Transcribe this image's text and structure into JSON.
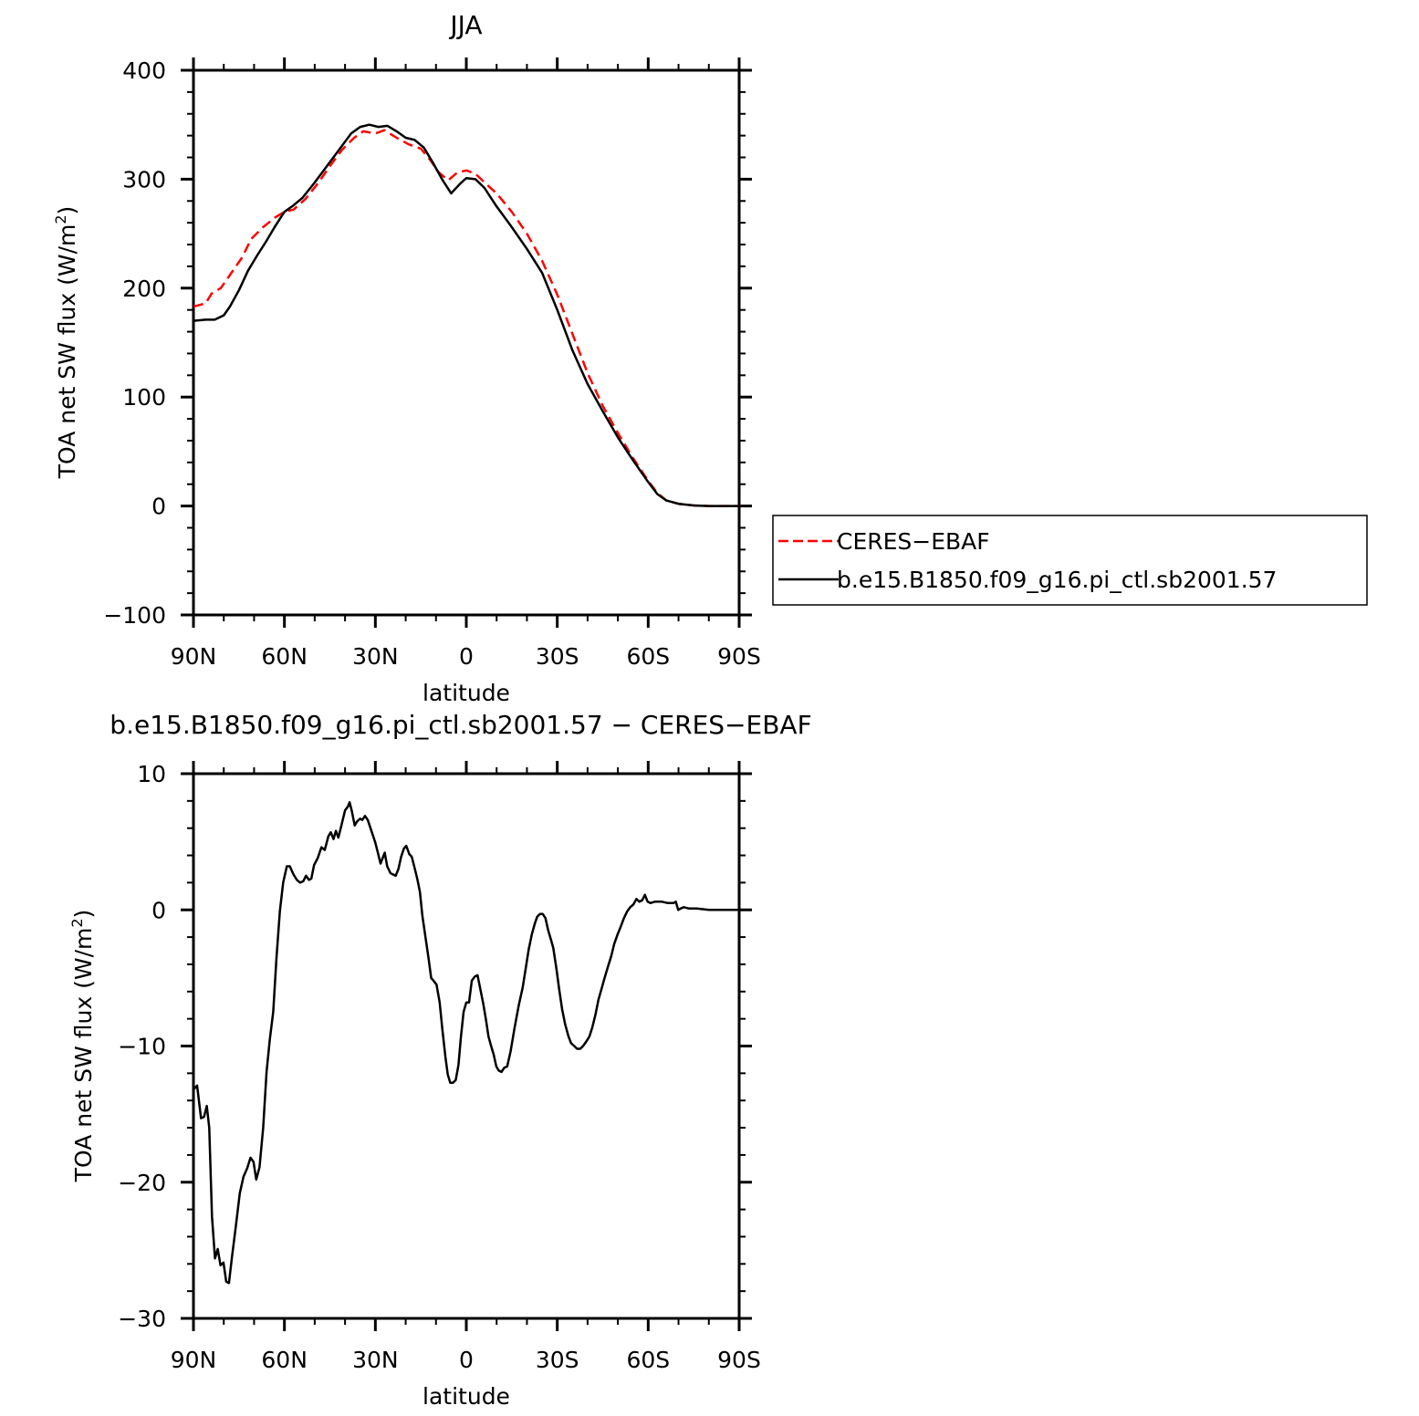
{
  "chart_data": [
    {
      "type": "line",
      "title": "JJA",
      "xlabel": "latitude",
      "ylabel": "TOA net SW flux (W/m²)",
      "ylabel_main": "TOA net SW flux (W/m",
      "ylabel_sup": "2",
      "ylabel_close": ")",
      "xlim": [
        90,
        -90
      ],
      "ylim": [
        -100,
        400
      ],
      "xticks": [
        90,
        60,
        30,
        0,
        -30,
        -60,
        -90
      ],
      "xtick_labels": [
        "90N",
        "60N",
        "30N",
        "0",
        "30S",
        "60S",
        "90S"
      ],
      "yticks": [
        -100,
        0,
        100,
        200,
        300,
        400
      ],
      "ytick_labels": [
        "−100",
        "0",
        "100",
        "200",
        "300",
        "400"
      ],
      "legend": {
        "position": "right"
      },
      "series": [
        {
          "name": "CERES−EBAF",
          "color": "#ff0000",
          "style": "dashed",
          "points": [
            [
              90,
              183
            ],
            [
              86,
              186
            ],
            [
              84,
              195
            ],
            [
              81,
              200
            ],
            [
              78,
              212
            ],
            [
              74,
              228
            ],
            [
              71,
              245
            ],
            [
              67,
              256
            ],
            [
              63,
              265
            ],
            [
              60,
              270
            ],
            [
              57,
              272
            ],
            [
              53,
              282
            ],
            [
              49,
              296
            ],
            [
              45,
              312
            ],
            [
              41,
              327
            ],
            [
              37,
              338
            ],
            [
              34,
              344
            ],
            [
              30,
              342
            ],
            [
              27,
              345
            ],
            [
              23,
              338
            ],
            [
              19,
              332
            ],
            [
              15,
              328
            ],
            [
              12,
              318
            ],
            [
              9,
              306
            ],
            [
              6,
              299
            ],
            [
              3,
              306
            ],
            [
              0,
              308
            ],
            [
              -3,
              305
            ],
            [
              -6,
              297
            ],
            [
              -10,
              287
            ],
            [
              -15,
              270
            ],
            [
              -20,
              250
            ],
            [
              -25,
              225
            ],
            [
              -30,
              194
            ],
            [
              -35,
              158
            ],
            [
              -40,
              122
            ],
            [
              -45,
              92
            ],
            [
              -50,
              67
            ],
            [
              -55,
              44
            ],
            [
              -60,
              23
            ],
            [
              -63,
              12
            ],
            [
              -66,
              5
            ],
            [
              -70,
              2
            ],
            [
              -75,
              0.5
            ],
            [
              -80,
              0
            ],
            [
              -90,
              0
            ]
          ]
        },
        {
          "name": "b.e15.B1850.f09_g16.pi_ctl.sb2001.57",
          "color": "#000000",
          "style": "solid",
          "points": [
            [
              90,
              170
            ],
            [
              86,
              171
            ],
            [
              83,
              171
            ],
            [
              80,
              175
            ],
            [
              78,
              183
            ],
            [
              75,
              198
            ],
            [
              72,
              216
            ],
            [
              69,
              230
            ],
            [
              66,
              243
            ],
            [
              63,
              257
            ],
            [
              60,
              270
            ],
            [
              57,
              276
            ],
            [
              54,
              283
            ],
            [
              50,
              297
            ],
            [
              46,
              312
            ],
            [
              42,
              327
            ],
            [
              38,
              342
            ],
            [
              35,
              348
            ],
            [
              32,
              350
            ],
            [
              29,
              348
            ],
            [
              26,
              349
            ],
            [
              23,
              344
            ],
            [
              20,
              338
            ],
            [
              17,
              336
            ],
            [
              14,
              329
            ],
            [
              11,
              315
            ],
            [
              8,
              300
            ],
            [
              5,
              287
            ],
            [
              2,
              296
            ],
            [
              0,
              301
            ],
            [
              -3,
              300
            ],
            [
              -6,
              292
            ],
            [
              -10,
              275
            ],
            [
              -15,
              256
            ],
            [
              -20,
              236
            ],
            [
              -25,
              214
            ],
            [
              -30,
              180
            ],
            [
              -35,
              143
            ],
            [
              -40,
              112
            ],
            [
              -45,
              87
            ],
            [
              -50,
              63
            ],
            [
              -55,
              42
            ],
            [
              -60,
              22
            ],
            [
              -63,
              11
            ],
            [
              -66,
              5
            ],
            [
              -70,
              2
            ],
            [
              -75,
              0.5
            ],
            [
              -80,
              0
            ],
            [
              -90,
              0
            ]
          ]
        }
      ]
    },
    {
      "type": "line",
      "title": "b.e15.B1850.f09_g16.pi_ctl.sb2001.57 − CERES−EBAF",
      "xlabel": "latitude",
      "ylabel": "TOA net SW flux (W/m²)",
      "ylabel_main": "TOA net SW flux (W/m",
      "ylabel_sup": "2",
      "ylabel_close": ")",
      "xlim": [
        90,
        -90
      ],
      "ylim": [
        -30,
        10
      ],
      "xticks": [
        90,
        60,
        30,
        0,
        -30,
        -60,
        -90
      ],
      "xtick_labels": [
        "90N",
        "60N",
        "30N",
        "0",
        "30S",
        "60S",
        "90S"
      ],
      "yticks": [
        -30,
        -20,
        -10,
        0,
        10
      ],
      "ytick_labels": [
        "−30",
        "−20",
        "−10",
        "0",
        "10"
      ],
      "series": [
        {
          "color": "#000000",
          "style": "solid",
          "points": [
            [
              90,
              -13.2
            ],
            [
              88.8,
              -12.9
            ],
            [
              87.5,
              -15.3
            ],
            [
              86.5,
              -15.2
            ],
            [
              85.6,
              -14.4
            ],
            [
              84.8,
              -16.0
            ],
            [
              83.9,
              -22.5
            ],
            [
              82.9,
              -25.6
            ],
            [
              82.0,
              -24.9
            ],
            [
              81.1,
              -26.1
            ],
            [
              80.1,
              -25.9
            ],
            [
              79.2,
              -27.3
            ],
            [
              78.3,
              -27.4
            ],
            [
              77.3,
              -25.5
            ],
            [
              76.0,
              -23.2
            ],
            [
              74.7,
              -20.8
            ],
            [
              73.5,
              -19.6
            ],
            [
              72.3,
              -19.0
            ],
            [
              71.2,
              -18.2
            ],
            [
              70.2,
              -18.5
            ],
            [
              69.3,
              -19.8
            ],
            [
              68.2,
              -18.9
            ],
            [
              67.0,
              -16.0
            ],
            [
              65.9,
              -11.9
            ],
            [
              64.8,
              -9.5
            ],
            [
              63.7,
              -7.5
            ],
            [
              62.6,
              -3.5
            ],
            [
              61.5,
              -0.1
            ],
            [
              60.4,
              2.0
            ],
            [
              59.2,
              3.2
            ],
            [
              58.2,
              3.2
            ],
            [
              57.0,
              2.6
            ],
            [
              55.9,
              2.2
            ],
            [
              54.8,
              2.0
            ],
            [
              53.8,
              2.1
            ],
            [
              52.9,
              2.5
            ],
            [
              51.9,
              2.2
            ],
            [
              51.1,
              2.3
            ],
            [
              50.2,
              3.3
            ],
            [
              49.0,
              3.8
            ],
            [
              47.8,
              4.6
            ],
            [
              46.7,
              4.4
            ],
            [
              45.5,
              5.4
            ],
            [
              44.7,
              5.7
            ],
            [
              43.8,
              5.2
            ],
            [
              43.0,
              5.8
            ],
            [
              42.2,
              5.3
            ],
            [
              41.1,
              6.3
            ],
            [
              40.0,
              7.3
            ],
            [
              39.0,
              7.6
            ],
            [
              38.5,
              7.9
            ],
            [
              37.8,
              7.3
            ],
            [
              36.8,
              6.2
            ],
            [
              36.0,
              6.5
            ],
            [
              35.0,
              6.7
            ],
            [
              34.3,
              6.6
            ],
            [
              33.4,
              6.9
            ],
            [
              32.5,
              6.6
            ],
            [
              31.3,
              5.8
            ],
            [
              30.1,
              5.0
            ],
            [
              29.3,
              4.3
            ],
            [
              28.3,
              3.4
            ],
            [
              27.6,
              3.8
            ],
            [
              26.9,
              4.2
            ],
            [
              26.1,
              3.2
            ],
            [
              25.0,
              2.7
            ],
            [
              24.2,
              2.6
            ],
            [
              23.3,
              2.5
            ],
            [
              22.4,
              3.0
            ],
            [
              21.5,
              3.9
            ],
            [
              20.6,
              4.5
            ],
            [
              19.8,
              4.7
            ],
            [
              18.8,
              4.1
            ],
            [
              18.0,
              3.9
            ],
            [
              17.2,
              3.2
            ],
            [
              16.2,
              2.3
            ],
            [
              15.3,
              1.3
            ],
            [
              14.5,
              -0.4
            ],
            [
              13.6,
              -1.8
            ],
            [
              12.5,
              -3.5
            ],
            [
              11.6,
              -5.0
            ],
            [
              10.8,
              -5.2
            ],
            [
              9.8,
              -5.5
            ],
            [
              8.8,
              -6.8
            ],
            [
              7.9,
              -8.8
            ],
            [
              6.9,
              -10.8
            ],
            [
              6.1,
              -12.1
            ],
            [
              5.3,
              -12.7
            ],
            [
              4.4,
              -12.7
            ],
            [
              3.5,
              -12.5
            ],
            [
              2.6,
              -11.4
            ],
            [
              1.8,
              -9.4
            ],
            [
              0.9,
              -7.5
            ],
            [
              0,
              -6.8
            ],
            [
              -0.9,
              -6.8
            ],
            [
              -1.8,
              -5.2
            ],
            [
              -2.8,
              -4.9
            ],
            [
              -3.7,
              -4.8
            ],
            [
              -4.6,
              -5.8
            ],
            [
              -5.6,
              -6.9
            ],
            [
              -6.5,
              -8.1
            ],
            [
              -7.3,
              -9.3
            ],
            [
              -8.2,
              -10.0
            ],
            [
              -9.0,
              -10.6
            ],
            [
              -9.9,
              -11.5
            ],
            [
              -10.7,
              -11.8
            ],
            [
              -11.6,
              -11.9
            ],
            [
              -12.5,
              -11.6
            ],
            [
              -13.5,
              -11.5
            ],
            [
              -14.6,
              -10.4
            ],
            [
              -15.9,
              -8.7
            ],
            [
              -17.3,
              -7.0
            ],
            [
              -18.6,
              -5.7
            ],
            [
              -19.6,
              -4.3
            ],
            [
              -20.6,
              -2.9
            ],
            [
              -21.6,
              -1.8
            ],
            [
              -22.6,
              -1.0
            ],
            [
              -23.4,
              -0.5
            ],
            [
              -24.3,
              -0.3
            ],
            [
              -25.2,
              -0.3
            ],
            [
              -26.1,
              -0.6
            ],
            [
              -27.0,
              -1.5
            ],
            [
              -27.8,
              -2.1
            ],
            [
              -28.7,
              -2.8
            ],
            [
              -29.7,
              -4.3
            ],
            [
              -30.6,
              -5.8
            ],
            [
              -31.6,
              -7.3
            ],
            [
              -32.6,
              -8.4
            ],
            [
              -33.7,
              -9.3
            ],
            [
              -34.6,
              -9.8
            ],
            [
              -35.6,
              -10.0
            ],
            [
              -36.5,
              -10.2
            ],
            [
              -37.6,
              -10.2
            ],
            [
              -38.5,
              -10.0
            ],
            [
              -39.5,
              -9.7
            ],
            [
              -40.6,
              -9.3
            ],
            [
              -41.6,
              -8.6
            ],
            [
              -42.6,
              -7.7
            ],
            [
              -43.6,
              -6.6
            ],
            [
              -44.6,
              -5.8
            ],
            [
              -45.6,
              -5.0
            ],
            [
              -46.7,
              -4.2
            ],
            [
              -47.8,
              -3.4
            ],
            [
              -48.8,
              -2.5
            ],
            [
              -49.9,
              -1.8
            ],
            [
              -51.0,
              -1.2
            ],
            [
              -52.0,
              -0.6
            ],
            [
              -53.1,
              -0.1
            ],
            [
              -54.1,
              0.2
            ],
            [
              -55.1,
              0.4
            ],
            [
              -56.1,
              0.8
            ],
            [
              -57.0,
              0.6
            ],
            [
              -58.0,
              0.7
            ],
            [
              -58.9,
              1.1
            ],
            [
              -59.8,
              0.6
            ],
            [
              -60.7,
              0.5
            ],
            [
              -62.2,
              0.6
            ],
            [
              -64.5,
              0.6
            ],
            [
              -66.5,
              0.5
            ],
            [
              -68.3,
              0.5
            ],
            [
              -69.1,
              0.6
            ],
            [
              -69.9,
              0.0
            ],
            [
              -70.7,
              0.1
            ],
            [
              -71.7,
              0.2
            ],
            [
              -73.5,
              0.1
            ],
            [
              -76,
              0.1
            ],
            [
              -80,
              0.0
            ],
            [
              -90,
              0.0
            ]
          ]
        }
      ]
    }
  ]
}
